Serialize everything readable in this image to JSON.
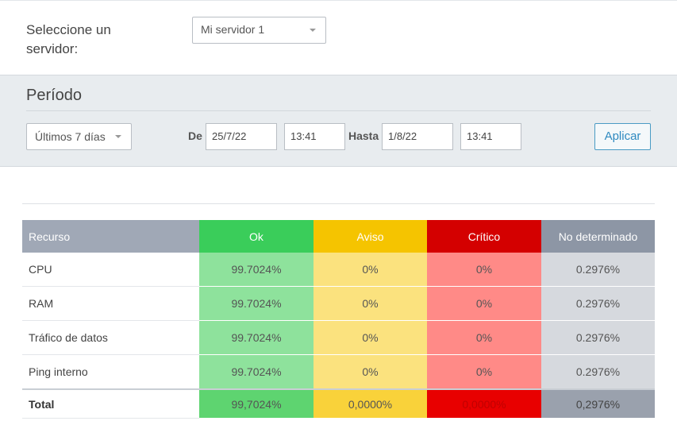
{
  "server": {
    "label": "Seleccione un servidor:",
    "selected": "Mi servidor 1"
  },
  "period": {
    "title": "Período",
    "range": "Últimos 7 días",
    "from_label": "De",
    "from_date": "25/7/22",
    "from_time": "13:41",
    "to_label": "Hasta",
    "to_date": "1/8/22",
    "to_time": "13:41",
    "apply": "Aplicar"
  },
  "table": {
    "headers": [
      "Recurso",
      "Ok",
      "Aviso",
      "Crítico",
      "No determinado"
    ],
    "rows": [
      [
        "CPU",
        "99.7024%",
        "0%",
        "0%",
        "0.2976%"
      ],
      [
        "RAM",
        "99.7024%",
        "0%",
        "0%",
        "0.2976%"
      ],
      [
        "Tráfico de datos",
        "99.7024%",
        "0%",
        "0%",
        "0.2976%"
      ],
      [
        "Ping interno",
        "99.7024%",
        "0%",
        "0%",
        "0.2976%"
      ]
    ],
    "total": [
      "Total",
      "99,7024%",
      "0,0000%",
      "0,0000%",
      "0,2976%"
    ]
  },
  "colors": {
    "ok": "#3acd5a",
    "warning": "#f5c400",
    "critical": "#d40000",
    "undetermined": "#8d96a5",
    "accent": "#2f8ac0"
  }
}
